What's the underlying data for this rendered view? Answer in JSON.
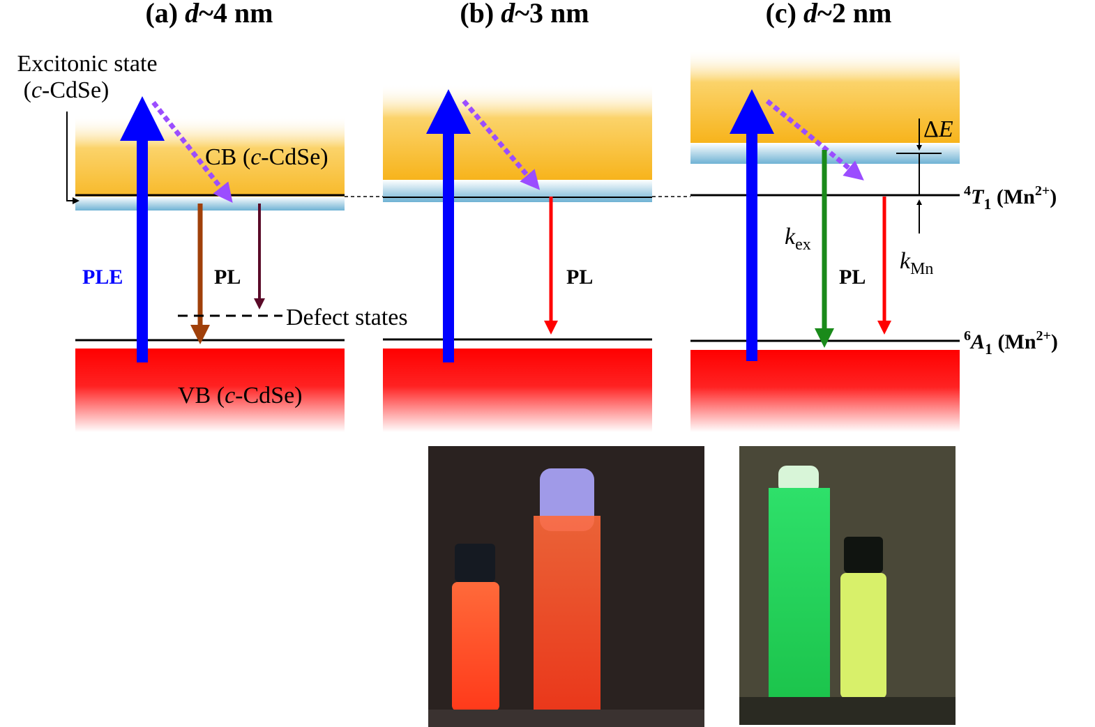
{
  "panels": [
    {
      "label": "(a)",
      "variable": "d",
      "size": "~4 nm"
    },
    {
      "label": "(b)",
      "variable": "d",
      "size": "~3 nm"
    },
    {
      "label": "(c)",
      "variable": "d",
      "size": "~2 nm"
    }
  ],
  "excitonic_state": {
    "line1": "Excitonic state",
    "open": "(",
    "italic": "c",
    "rest": "-CdSe)"
  },
  "conduction_band": {
    "prefix": "CB (",
    "italic": "c",
    "suffix": "-CdSe)"
  },
  "valence_band": {
    "prefix": "VB (",
    "italic": "c",
    "suffix": "-CdSe)"
  },
  "ple": "PLE",
  "pl_labels": [
    "PL",
    "PL",
    "PL"
  ],
  "defect_states": "Defect states",
  "k_ex": {
    "symbol": "k",
    "subscript": "ex"
  },
  "k_mn": {
    "symbol": "k",
    "subscript": "Mn"
  },
  "delta_e": {
    "delta": "Δ",
    "symbol": "E"
  },
  "level_4t1": {
    "superscript": "4",
    "symbol": "T",
    "subscript": "1",
    "ion": " (Mn",
    "charge": "2+",
    "close": ")"
  },
  "level_6a1": {
    "superscript": "6",
    "symbol": "A",
    "subscript": "1",
    "ion": " (Mn",
    "charge": "2+",
    "close": ")"
  }
}
